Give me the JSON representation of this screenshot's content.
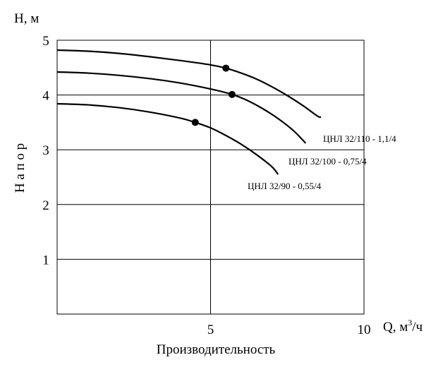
{
  "chart_data": {
    "type": "line",
    "ylabel": "Н а п о р",
    "xlabel": "Производительность",
    "y_axis_unit": "Н, м",
    "x_axis_unit_base": "Q, м",
    "x_axis_unit_sup": "3",
    "x_axis_unit_tail": "/ч",
    "xlim": [
      0,
      10
    ],
    "ylim": [
      0,
      5
    ],
    "x_ticks": [
      "5",
      "10"
    ],
    "y_ticks": [
      "1",
      "2",
      "3",
      "4",
      "5"
    ],
    "grid": true,
    "series": [
      {
        "name": "ЦНЛ 32/110 - 1,1/4",
        "points": [
          [
            0,
            4.82
          ],
          [
            1,
            4.8
          ],
          [
            2,
            4.76
          ],
          [
            3,
            4.7
          ],
          [
            4,
            4.63
          ],
          [
            5,
            4.55
          ],
          [
            5.5,
            4.49
          ],
          [
            6,
            4.4
          ],
          [
            6.5,
            4.29
          ],
          [
            7,
            4.15
          ],
          [
            7.5,
            3.99
          ],
          [
            8,
            3.81
          ],
          [
            8.5,
            3.61
          ],
          [
            8.6,
            3.6
          ]
        ],
        "marker": [
          5.5,
          4.49
        ]
      },
      {
        "name": "ЦНЛ 32/100 - 0,75/4",
        "points": [
          [
            0,
            4.42
          ],
          [
            1,
            4.4
          ],
          [
            2,
            4.36
          ],
          [
            3,
            4.3
          ],
          [
            4,
            4.22
          ],
          [
            5,
            4.11
          ],
          [
            5.7,
            4.01
          ],
          [
            6.2,
            3.9
          ],
          [
            6.7,
            3.75
          ],
          [
            7.2,
            3.57
          ],
          [
            7.7,
            3.35
          ],
          [
            8.1,
            3.12
          ]
        ],
        "marker": [
          5.7,
          4.01
        ]
      },
      {
        "name": "ЦНЛ 32/90 - 0,55/4",
        "points": [
          [
            0,
            3.84
          ],
          [
            1,
            3.82
          ],
          [
            2,
            3.77
          ],
          [
            3,
            3.69
          ],
          [
            4,
            3.58
          ],
          [
            4.5,
            3.5
          ],
          [
            5,
            3.4
          ],
          [
            5.5,
            3.26
          ],
          [
            6,
            3.1
          ],
          [
            6.5,
            2.91
          ],
          [
            7,
            2.69
          ],
          [
            7.2,
            2.55
          ]
        ],
        "marker": [
          4.5,
          3.5
        ]
      }
    ]
  }
}
